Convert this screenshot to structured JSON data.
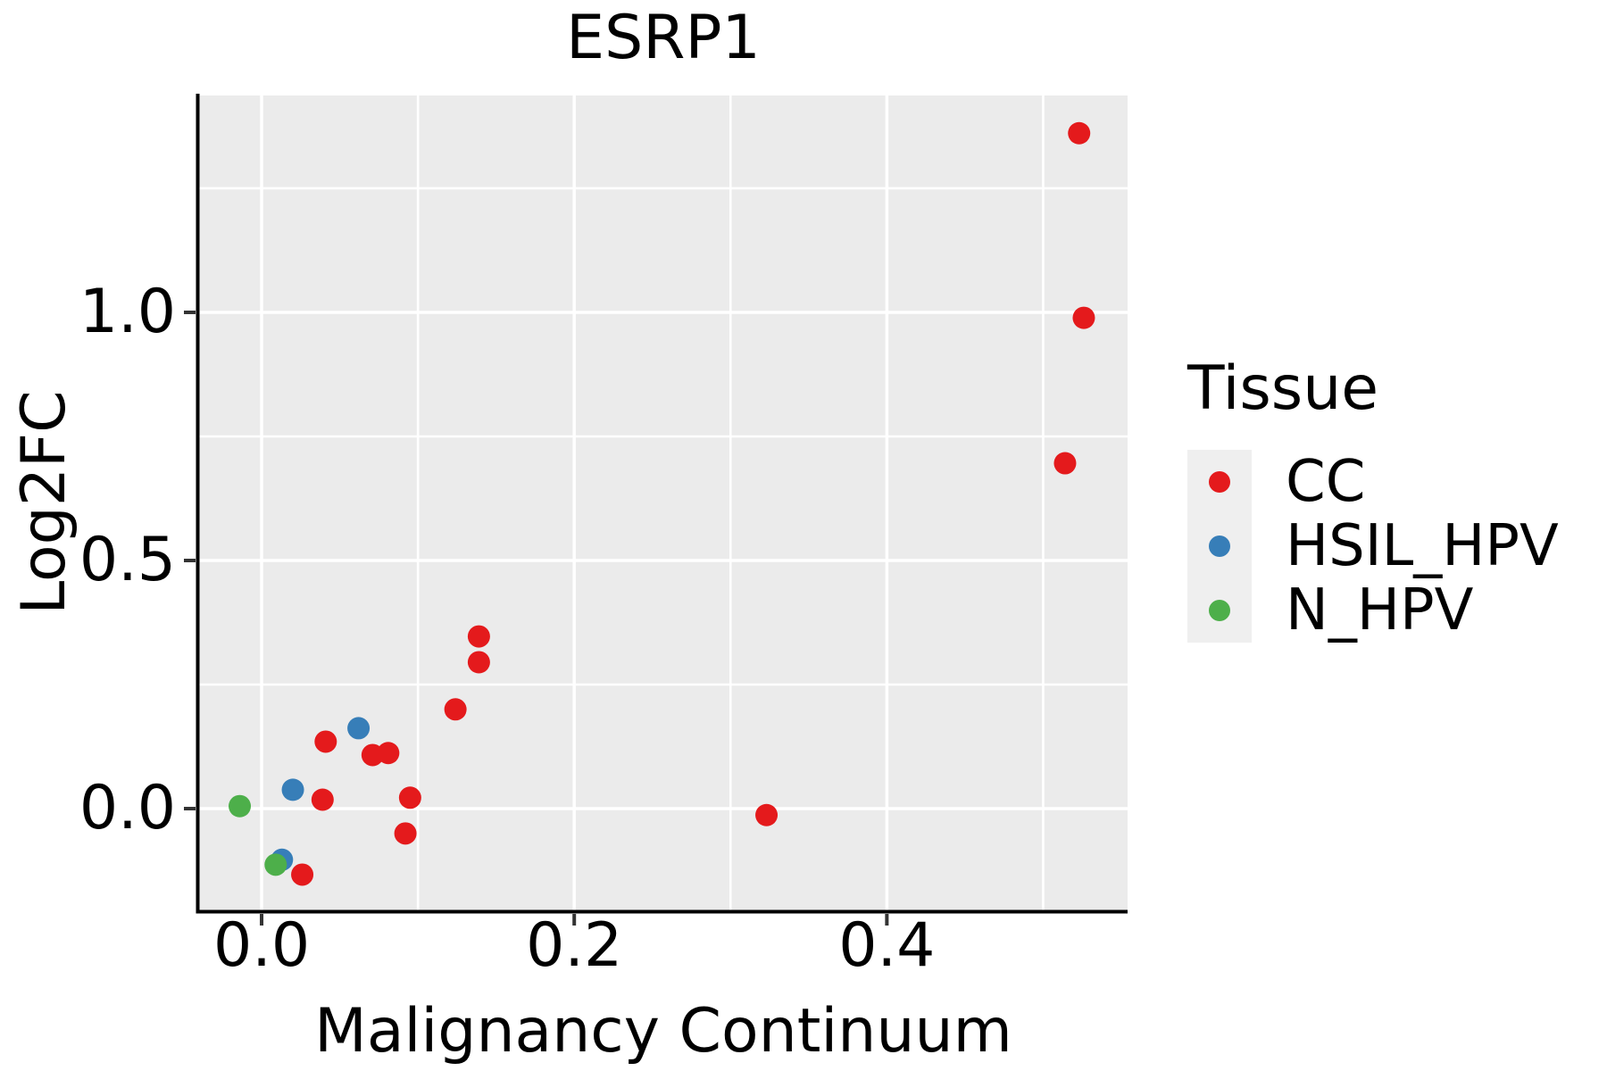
{
  "chart_data": {
    "type": "scatter",
    "title": "ESRP1",
    "xlabel": "Malignancy Continuum",
    "ylabel": "Log2FC",
    "legend_title": "Tissue",
    "legend_position": "right",
    "grid": "on",
    "panel_background": "#EBEBEB",
    "gridline_color": "#FFFFFF",
    "tick_color": "#333333",
    "spine_color": "#000000",
    "xlim": [
      -0.04,
      0.554
    ],
    "ylim": [
      -0.205,
      1.437
    ],
    "x_major_ticks": [
      0.0,
      0.2,
      0.4
    ],
    "x_tick_labels": [
      "0.0",
      "0.2",
      "0.4"
    ],
    "x_minor_gridlines": [
      0.1,
      0.3,
      0.5
    ],
    "y_major_ticks": [
      0.0,
      0.5,
      1.0
    ],
    "y_tick_labels": [
      "0.0",
      "0.5",
      "1.0"
    ],
    "y_minor_gridlines": [
      0.25,
      0.75,
      1.25
    ],
    "series": [
      {
        "name": "CC",
        "color": "#E41A1C",
        "points": [
          [
            0.523,
            1.361
          ],
          [
            0.526,
            0.989
          ],
          [
            0.514,
            0.696
          ],
          [
            0.139,
            0.347
          ],
          [
            0.139,
            0.295
          ],
          [
            0.124,
            0.2
          ],
          [
            0.041,
            0.135
          ],
          [
            0.071,
            0.108
          ],
          [
            0.081,
            0.112
          ],
          [
            0.039,
            0.018
          ],
          [
            0.095,
            0.022
          ],
          [
            0.323,
            -0.013
          ],
          [
            0.092,
            -0.05
          ],
          [
            0.026,
            -0.133
          ]
        ]
      },
      {
        "name": "HSIL_HPV",
        "color": "#377EB8",
        "points": [
          [
            0.062,
            0.162
          ],
          [
            0.02,
            0.038
          ],
          [
            0.013,
            -0.103
          ]
        ]
      },
      {
        "name": "N_HPV",
        "color": "#4DAF4A",
        "points": [
          [
            -0.014,
            0.005
          ],
          [
            0.009,
            -0.113
          ]
        ]
      }
    ]
  }
}
